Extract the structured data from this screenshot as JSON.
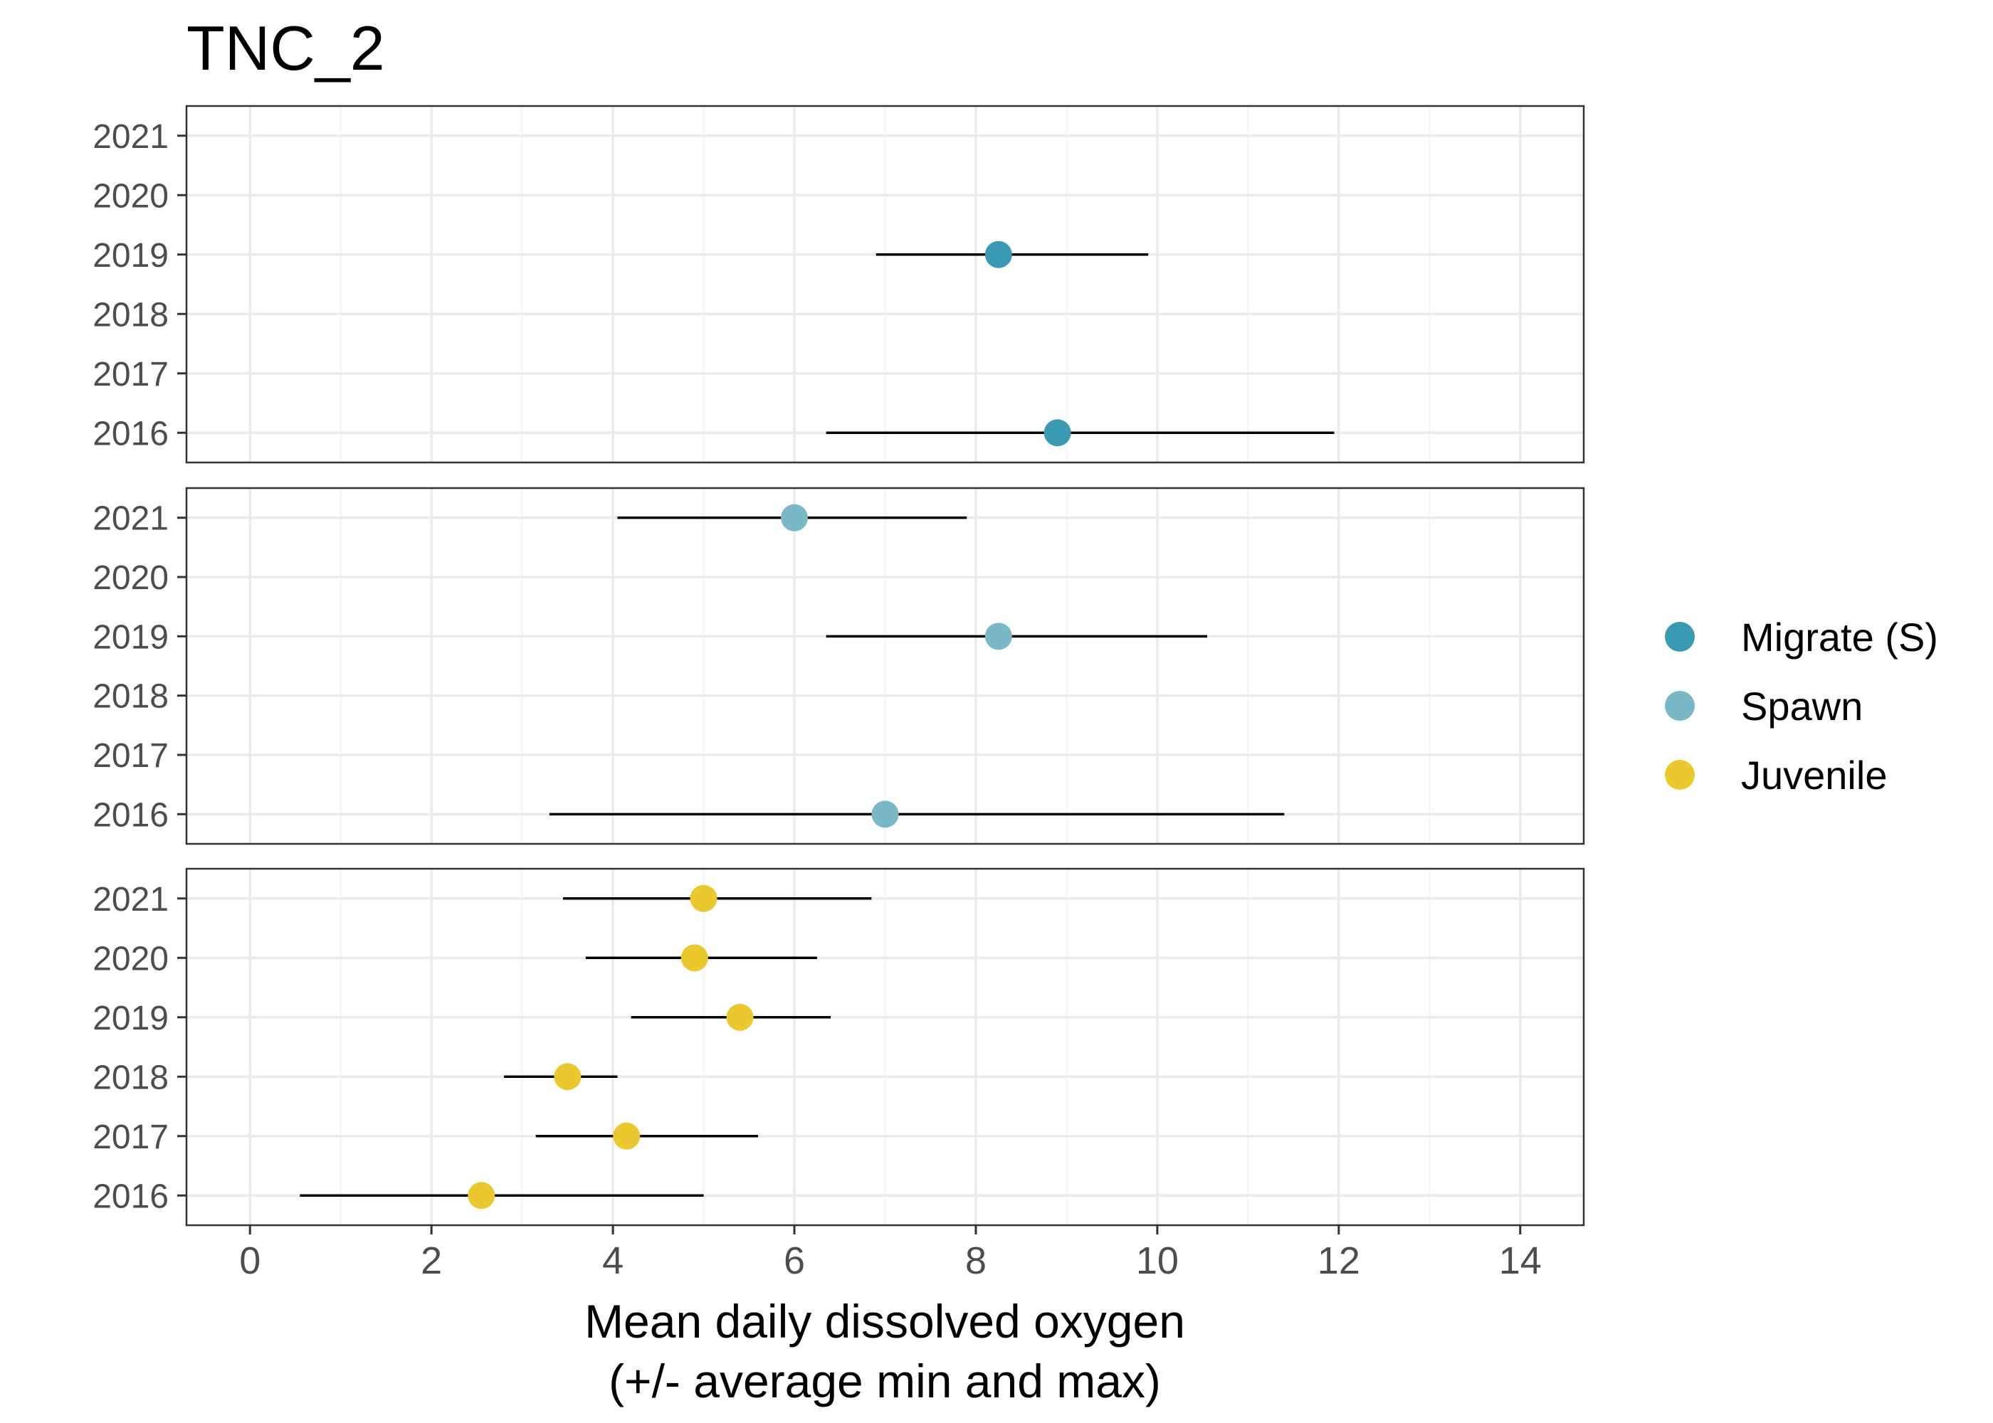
{
  "chart_data": {
    "type": "scatter",
    "title": "TNC_2",
    "xlabel_line1": "Mean daily dissolved oxygen",
    "xlabel_line2": "(+/- average min and max)",
    "ylabel": "",
    "xlim": [
      -0.7,
      14.7
    ],
    "x_ticks": [
      0,
      2,
      4,
      6,
      8,
      10,
      12,
      14
    ],
    "x_tick_labels": [
      "0",
      "2",
      "4",
      "6",
      "8",
      "10",
      "12",
      "14"
    ],
    "y_categories": [
      "2016",
      "2017",
      "2018",
      "2019",
      "2020",
      "2021"
    ],
    "grid": true,
    "legend_position": "right",
    "series": [
      {
        "name": "Migrate (S)",
        "color": "#3a9ab3",
        "points": [
          {
            "year": "2019",
            "mean": 8.25,
            "min": 6.9,
            "max": 9.9
          },
          {
            "year": "2016",
            "mean": 8.9,
            "min": 6.35,
            "max": 11.95
          }
        ]
      },
      {
        "name": "Spawn",
        "color": "#79b8c7",
        "points": [
          {
            "year": "2021",
            "mean": 6.0,
            "min": 4.05,
            "max": 7.9
          },
          {
            "year": "2019",
            "mean": 8.25,
            "min": 6.35,
            "max": 10.55
          },
          {
            "year": "2016",
            "mean": 7.0,
            "min": 3.3,
            "max": 11.4
          }
        ]
      },
      {
        "name": "Juvenile",
        "color": "#ebc82e",
        "points": [
          {
            "year": "2021",
            "mean": 5.0,
            "min": 3.45,
            "max": 6.85
          },
          {
            "year": "2020",
            "mean": 4.9,
            "min": 3.7,
            "max": 6.25
          },
          {
            "year": "2019",
            "mean": 5.4,
            "min": 4.2,
            "max": 6.4
          },
          {
            "year": "2018",
            "mean": 3.5,
            "min": 2.8,
            "max": 4.05
          },
          {
            "year": "2017",
            "mean": 4.15,
            "min": 3.15,
            "max": 5.6
          },
          {
            "year": "2016",
            "mean": 2.55,
            "min": 0.55,
            "max": 5.0
          }
        ]
      }
    ]
  }
}
